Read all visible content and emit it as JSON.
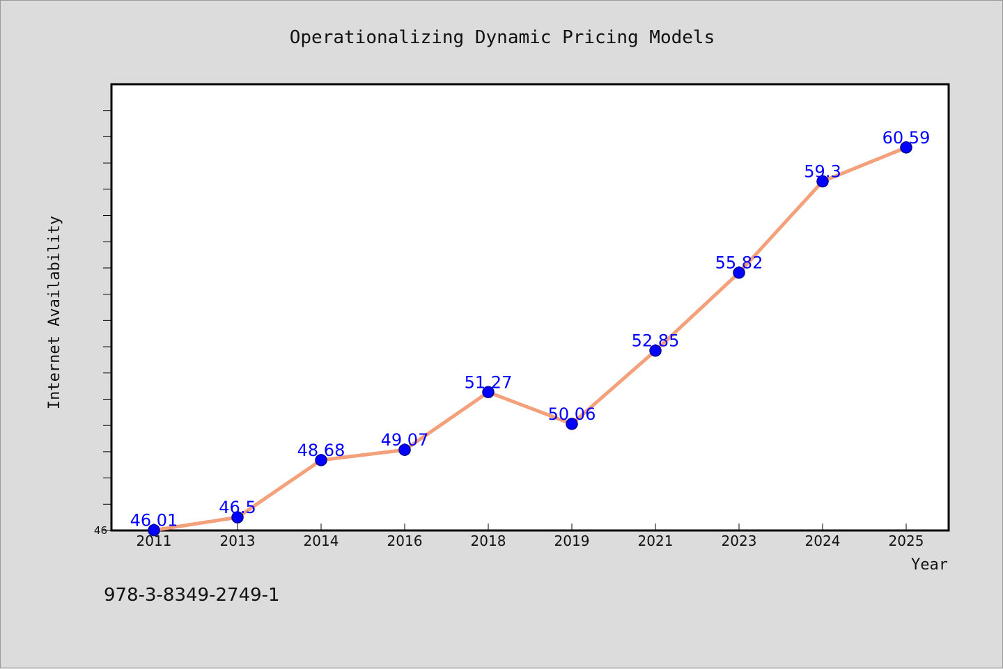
{
  "chart_data": {
    "type": "line",
    "title": "Operationalizing Dynamic Pricing Models",
    "xlabel": "Year",
    "ylabel": "Internet Availability",
    "categories": [
      "2011",
      "2013",
      "2014",
      "2016",
      "2018",
      "2019",
      "2021",
      "2023",
      "2024",
      "2025"
    ],
    "values": [
      46.01,
      46.5,
      48.68,
      49.07,
      51.27,
      50.06,
      52.85,
      55.82,
      59.3,
      60.59
    ],
    "data_labels": [
      "46.01",
      "46.5",
      "48.68",
      "49.07",
      "51.27",
      "50.06",
      "52.85",
      "55.82",
      "59.3",
      "60.59"
    ],
    "ylim": [
      46,
      63
    ],
    "y_tick_labels": [
      "46"
    ],
    "grid": false,
    "legend": "none",
    "colors": {
      "line": "#f4a07a",
      "marker": "#0000ff",
      "label": "#0000ff",
      "background": "#dcdcdc",
      "plot_bg": "#ffffff"
    }
  },
  "footnote": "978-3-8349-2749-1"
}
